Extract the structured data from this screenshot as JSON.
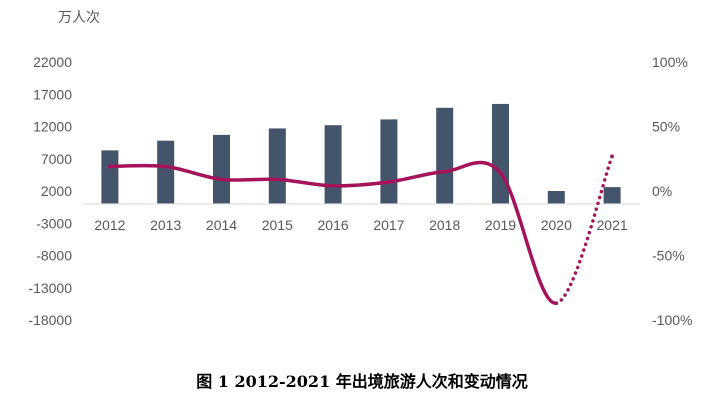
{
  "chart_data": {
    "type": "bar",
    "unit_label": "万人次",
    "caption": "图 1 2012-2021 年出境旅游人次和变动情况",
    "categories": [
      "2012",
      "2013",
      "2014",
      "2015",
      "2016",
      "2017",
      "2018",
      "2019",
      "2020",
      "2021"
    ],
    "left_axis": {
      "ticks": [
        "22000",
        "17000",
        "12000",
        "7000",
        "2000",
        "-3000",
        "-8000",
        "-13000",
        "-18000"
      ],
      "ylim": [
        -18000,
        22000
      ]
    },
    "right_axis": {
      "ticks": [
        "100%",
        "50%",
        "0%",
        "-50%",
        "-100%"
      ],
      "ylim": [
        -100,
        100
      ]
    },
    "series": [
      {
        "kind": "bar",
        "color": "#44546a",
        "values": [
          8300,
          9800,
          10700,
          11700,
          12200,
          13100,
          14900,
          15500,
          2000,
          2600
        ]
      },
      {
        "kind": "line",
        "color": "#a5145a",
        "values": [
          19,
          19,
          9,
          9,
          4,
          7,
          15,
          14,
          -87,
          27
        ]
      }
    ]
  }
}
